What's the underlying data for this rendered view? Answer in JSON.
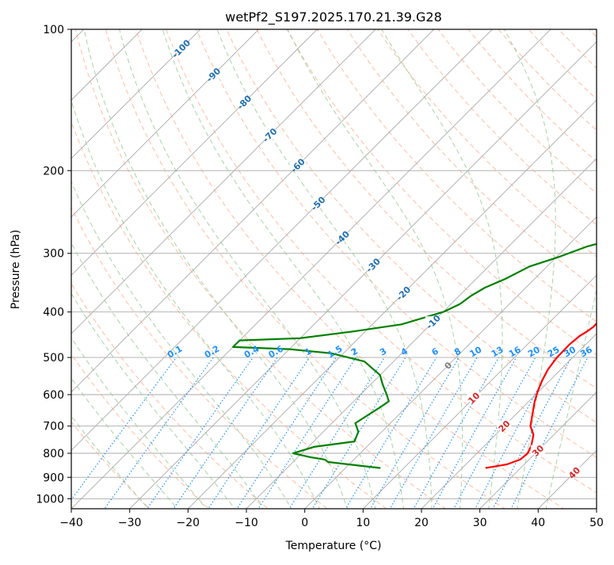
{
  "chart_data": {
    "type": "line",
    "title": "wetPf2_S197.2025.170.21.39.G28",
    "xlabel": "Temperature (°C)",
    "ylabel": "Pressure (hPa)",
    "xlim": [
      -40,
      50
    ],
    "ylim": [
      1050,
      100
    ],
    "y_scale": "log",
    "x_ticks": [
      "−40",
      "−30",
      "−20",
      "−10",
      "0",
      "10",
      "20",
      "30",
      "40",
      "50"
    ],
    "x_tick_values": [
      -40,
      -30,
      -20,
      -10,
      0,
      10,
      20,
      30,
      40,
      50
    ],
    "y_ticks": [
      "100",
      "200",
      "300",
      "400",
      "500",
      "600",
      "700",
      "800",
      "900",
      "1000"
    ],
    "y_tick_values": [
      100,
      200,
      300,
      400,
      500,
      600,
      700,
      800,
      900,
      1000
    ],
    "grid": true,
    "skew": "45-degree skewed isotherms",
    "colors": {
      "temperature": "#ff0000",
      "dewpoint": "#008000",
      "isotherm": "#aaaaaa",
      "dry_adiabat": "#ffa07a",
      "moist_adiabat": "#90c890",
      "mixing_ratio": "#1e90ff",
      "isotherm_label": "#1f6fb3",
      "dry_adiabat_label": "#d62728",
      "zero_label": "#808080"
    },
    "series": [
      {
        "x": [
          24,
          27,
          28.5,
          28.7,
          28,
          26.5,
          24.5,
          22.8,
          21,
          19.8,
          18.7,
          17.8,
          17.3,
          17.2,
          17.5,
          18,
          18.3,
          18.2,
          17.5,
          16.2,
          14.5,
          12.5,
          10.5,
          8.5,
          6,
          3.5,
          1,
          -0.5,
          -0.5,
          0.5,
          3.5,
          7,
          9.5,
          10.5,
          10.8
        ],
        "y": [
          860,
          845,
          825,
          800,
          770,
          730,
          700,
          660,
          620,
          590,
          560,
          530,
          500,
          470,
          450,
          440,
          430,
          410,
          390,
          365,
          340,
          315,
          290,
          260,
          230,
          210,
          200,
          185,
          170,
          160,
          145,
          130,
          115,
          105,
          100
        ]
      },
      {
        "x": [
          6,
          2,
          -4,
          -5,
          -8,
          -11.5,
          -9,
          -6,
          -3,
          -4,
          -6,
          -4.5,
          -4,
          -5.5,
          -8,
          -10,
          -15,
          -22,
          -30,
          -40,
          -40,
          -30,
          -22,
          -15,
          -10,
          -8.5,
          -8,
          -7,
          -5,
          -3,
          0.5,
          3.5,
          7,
          6,
          3,
          0.5,
          -1.5,
          -3.5,
          -4.5,
          -4.5,
          -6,
          -5.5,
          -3.5,
          -1
        ],
        "y": [
          860,
          850,
          835,
          825,
          815,
          800,
          775,
          765,
          755,
          720,
          690,
          640,
          620,
          600,
          570,
          545,
          510,
          490,
          480,
          475,
          460,
          455,
          440,
          425,
          400,
          385,
          370,
          355,
          340,
          320,
          305,
          290,
          280,
          255,
          225,
          195,
          185,
          175,
          160,
          145,
          130,
          120,
          110,
          100
        ]
      }
    ],
    "isotherm_labels": [
      "-100",
      "-90",
      "-80",
      "-70",
      "-60",
      "-50",
      "-40",
      "-30",
      "-20",
      "-10"
    ],
    "isotherm_label_values": [
      -100,
      -90,
      -80,
      -70,
      -60,
      -50,
      -40,
      -30,
      -20,
      -10
    ],
    "mixing_ratio_labels": [
      "0.1",
      "0.2",
      "0.4",
      "0.6",
      "1",
      "1.5",
      "2",
      "3",
      "4",
      "6",
      "8",
      "10",
      "13",
      "16",
      "20",
      "25",
      "30",
      "36"
    ],
    "dry_adiabat_labels": [
      "10",
      "20",
      "30",
      "40"
    ],
    "dry_adiabat_label_values": [
      10,
      20,
      30,
      40
    ],
    "zero_label": "0"
  }
}
